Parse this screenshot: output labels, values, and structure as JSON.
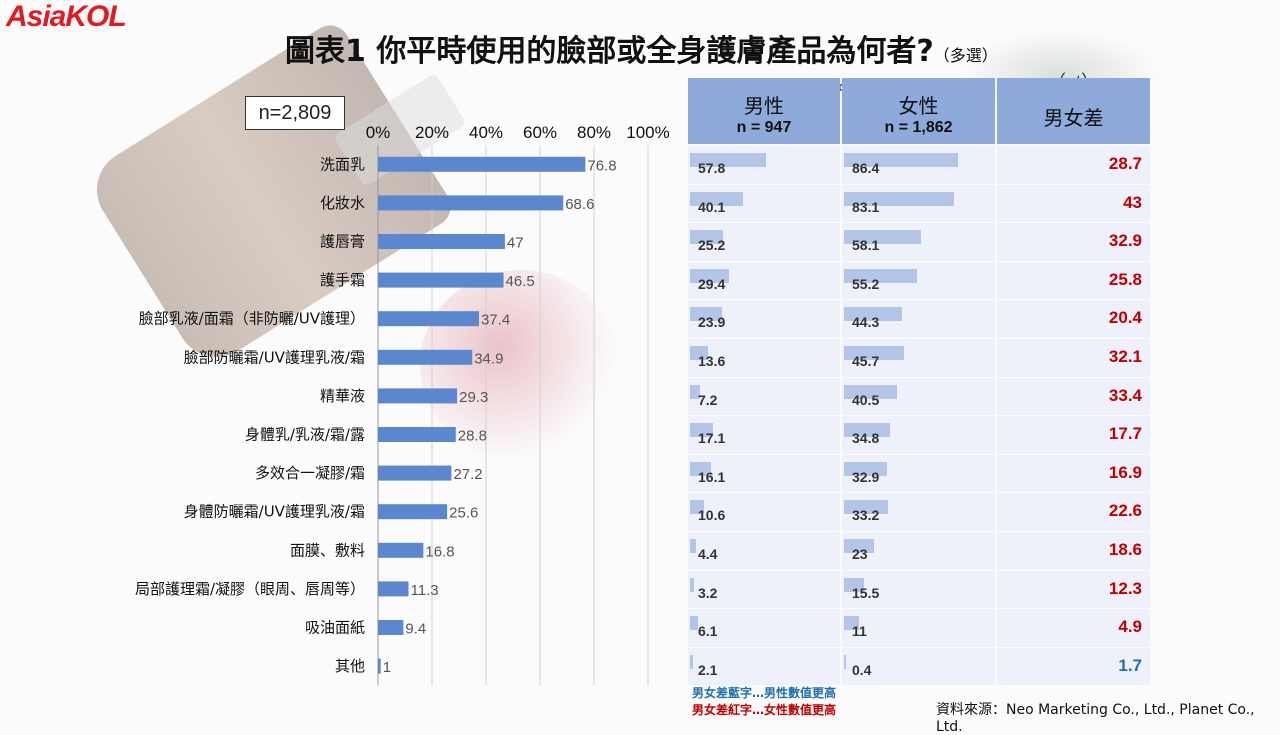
{
  "logo": "AsiaKOL",
  "title": "圖表1  你平時使用的臉部或全身護膚產品為何者?",
  "title_sub": "（多選）",
  "sample": "n=2,809",
  "chart_data": {
    "type": "bar",
    "orientation": "horizontal",
    "xlim": [
      0,
      100
    ],
    "x_ticks": [
      "0%",
      "20%",
      "40%",
      "60%",
      "80%",
      "100%"
    ],
    "categories": [
      "洗面乳",
      "化妝水",
      "護唇膏",
      "護手霜",
      "臉部乳液/面霜（非防曬/UV護理）",
      "臉部防曬霜/UV護理乳液/霜",
      "精華液",
      "身體乳/乳液/霜/露",
      "多效合一凝膠/霜",
      "身體防曬霜/UV護理乳液/霜",
      "面膜、敷料",
      "局部護理霜/凝膠（眼周、唇周等）",
      "吸油面紙",
      "其他"
    ],
    "values": [
      76.8,
      68.6,
      47,
      46.5,
      37.4,
      34.9,
      29.3,
      28.8,
      27.2,
      25.6,
      16.8,
      11.3,
      9.4,
      1
    ],
    "bar_color": "#5b87cf",
    "grid": true
  },
  "table": {
    "unit_pct": "（%）",
    "unit_pt": "（pt）",
    "male_header": "男性",
    "male_n": "n = 947",
    "female_header": "女性",
    "female_n": "n = 1,862",
    "diff_header": "男女差",
    "rows": [
      {
        "male": 57.8,
        "female": 86.4,
        "diff": "28.7",
        "higher": "female"
      },
      {
        "male": 40.1,
        "female": 83.1,
        "diff": "43",
        "higher": "female"
      },
      {
        "male": 25.2,
        "female": 58.1,
        "diff": "32.9",
        "higher": "female"
      },
      {
        "male": 29.4,
        "female": 55.2,
        "diff": "25.8",
        "higher": "female"
      },
      {
        "male": 23.9,
        "female": 44.3,
        "diff": "20.4",
        "higher": "female"
      },
      {
        "male": 13.6,
        "female": 45.7,
        "diff": "32.1",
        "higher": "female"
      },
      {
        "male": 7.2,
        "female": 40.5,
        "diff": "33.4",
        "higher": "female"
      },
      {
        "male": 17.1,
        "female": 34.8,
        "diff": "17.7",
        "higher": "female"
      },
      {
        "male": 16.1,
        "female": 32.9,
        "diff": "16.9",
        "higher": "female"
      },
      {
        "male": 10.6,
        "female": 33.2,
        "diff": "22.6",
        "higher": "female"
      },
      {
        "male": 4.4,
        "female": 23,
        "diff": "18.6",
        "higher": "female"
      },
      {
        "male": 3.2,
        "female": 15.5,
        "diff": "12.3",
        "higher": "female"
      },
      {
        "male": 6.1,
        "female": 11,
        "diff": "4.9",
        "higher": "female"
      },
      {
        "male": 2.1,
        "female": 0.4,
        "diff": "1.7",
        "higher": "male"
      }
    ],
    "colors": {
      "male_higher": "#1f6fb4",
      "female_higher": "#c00000",
      "header_bg": "#8eaadb",
      "bar": "#b4c6e7"
    }
  },
  "notes": {
    "blue": "男女差藍字…男性數值更高",
    "red": "男女差紅字…女性數值更高"
  },
  "source": "資料來源：Neo Marketing  Co., Ltd., Planet Co., Ltd."
}
